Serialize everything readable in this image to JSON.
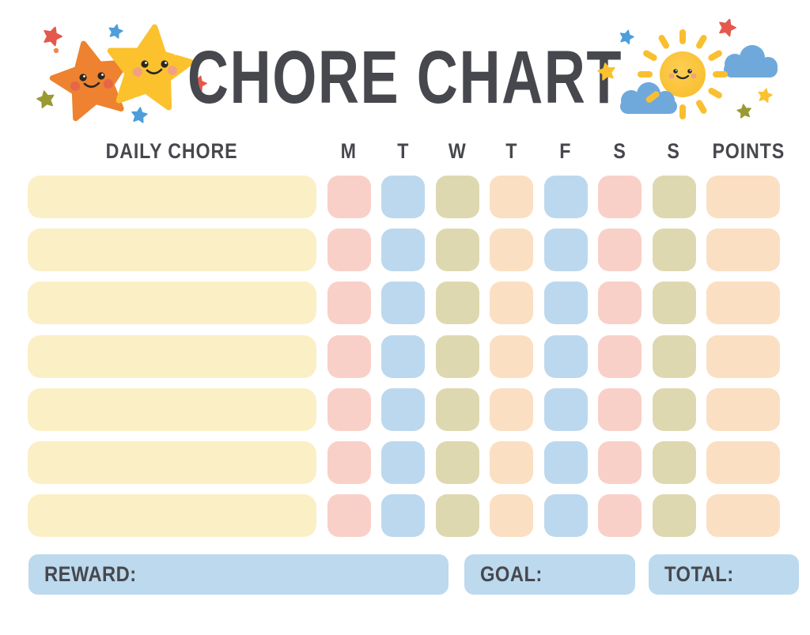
{
  "title": "CHORE CHART",
  "header": {
    "chore": "DAILY CHORE",
    "days": [
      "M",
      "T",
      "W",
      "T",
      "F",
      "S",
      "S"
    ],
    "points": "POINTS"
  },
  "table": {
    "rows": [
      {
        "chore": "",
        "points": ""
      },
      {
        "chore": "",
        "points": ""
      },
      {
        "chore": "",
        "points": ""
      },
      {
        "chore": "",
        "points": ""
      },
      {
        "chore": "",
        "points": ""
      },
      {
        "chore": "",
        "points": ""
      },
      {
        "chore": "",
        "points": ""
      }
    ],
    "day_cell_pattern": [
      "pink",
      "blue",
      "olive",
      "peach",
      "blue",
      "pink",
      "olive"
    ],
    "points_cell_color": "peach",
    "chore_cell_color": "yellow"
  },
  "footer": {
    "reward": "REWARD:",
    "goal": "GOAL:",
    "total": "TOTAL:",
    "reward_value": "",
    "goal_value": "",
    "total_value": ""
  },
  "colors": {
    "ink": "#47484D",
    "row-yellow": "#FBEFC6",
    "cell-pink": "#F9D0C8",
    "cell-blue": "#BCD8EE",
    "cell-olive": "#DED8B0",
    "cell-peach": "#FBDFC2",
    "footer-blue": "#BCD9EE",
    "star-orange": "#EE8230",
    "star-yellow": "#FBC22E",
    "mini-red": "#E4584D",
    "mini-blue": "#4D9EDB",
    "mini-olive": "#9A9A35",
    "dot-orange": "#EC8A4E",
    "sun-yellow": "#F9BF30",
    "cloud-blue": "#6FA9DC",
    "cheek-orange": "#E4624C",
    "cheek-pink": "#F19C8B",
    "face-dark": "#2A2723"
  },
  "decorations": {
    "left": [
      "orange-star",
      "yellow-star",
      "red-mini-star",
      "blue-mini-star",
      "olive-mini-star",
      "red-mini-star-2",
      "blue-mini-star-2",
      "orange-dot"
    ],
    "right": [
      "smiling-sun",
      "cloud-left",
      "cloud-right",
      "blue-mini-star",
      "red-mini-star",
      "yellow-mini-star",
      "yellow-mini-star-2",
      "olive-mini-star"
    ]
  }
}
